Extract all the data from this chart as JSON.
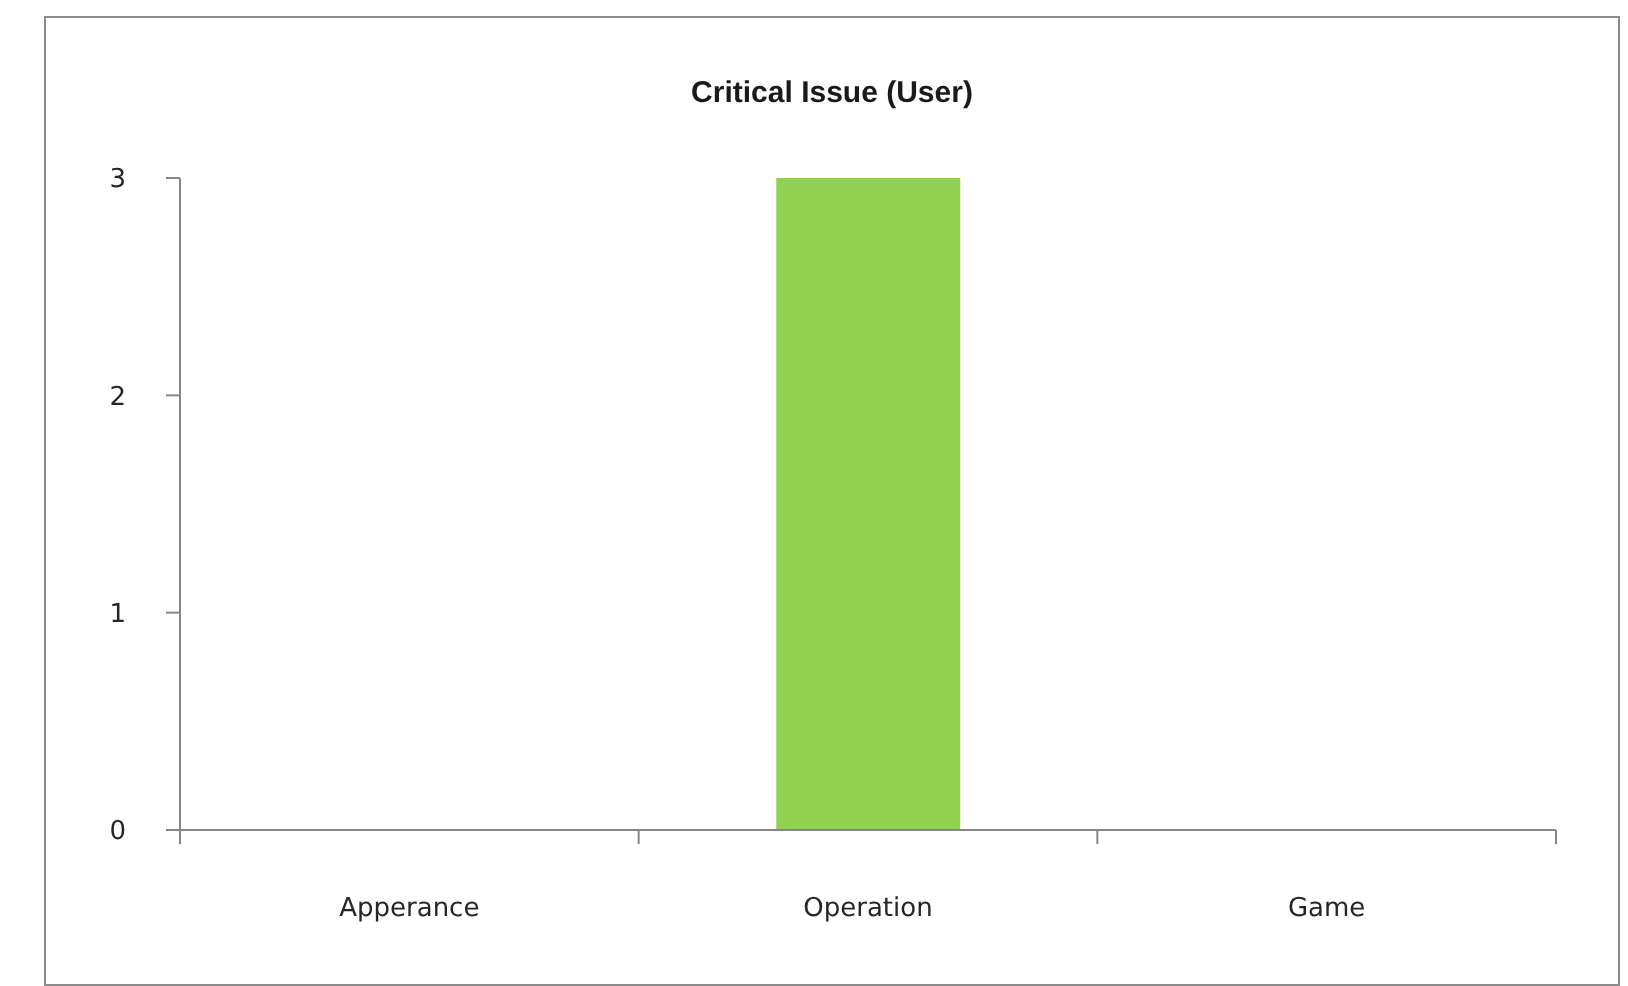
{
  "chart_data": {
    "type": "bar",
    "title": "Critical Issue (User)",
    "categories": [
      "Apperance",
      "Operation",
      "Game"
    ],
    "values": [
      0,
      3,
      0
    ],
    "color": "#92d050",
    "ylim": [
      0,
      3
    ],
    "yticks": [
      0,
      1,
      2,
      3
    ]
  }
}
